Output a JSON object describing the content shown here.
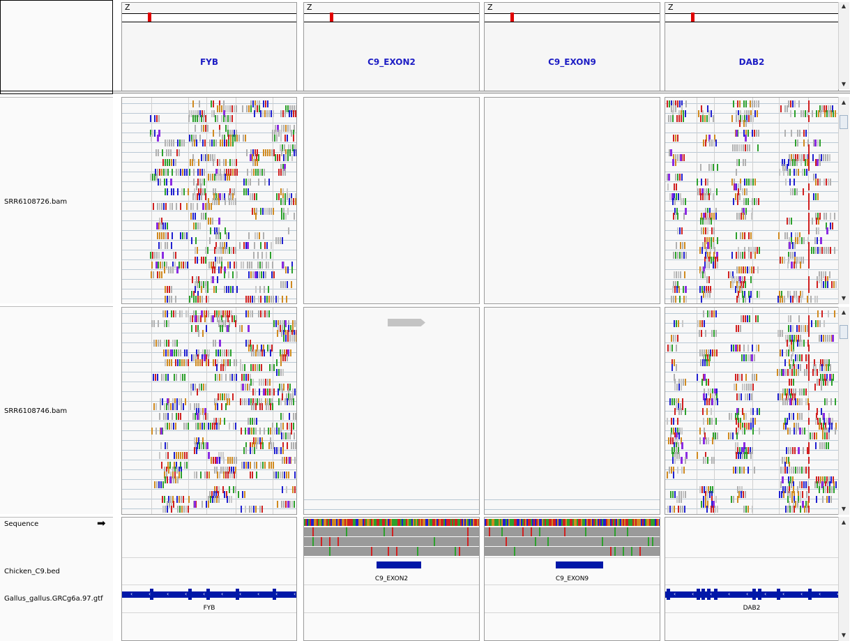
{
  "loci": [
    "FYB",
    "C9_EXON2",
    "C9_EXON9",
    "DAB2"
  ],
  "header": {
    "chrom_prefix": "Z"
  },
  "tracks": {
    "alignment1": "SRR6108726.bam",
    "alignment2": "SRR6108746.bam",
    "sequence": "Sequence",
    "bed": "Chicken_C9.bed",
    "gtf": "Gallus_gallus.GRCg6a.97.gtf"
  },
  "features": {
    "bed": [
      "",
      "C9_EXON2",
      "C9_EXON9",
      ""
    ],
    "gtf": [
      "FYB",
      "",
      "",
      "DAB2"
    ]
  },
  "icons": {
    "sequence_strand": "right-arrow-icon",
    "scroll_up": "up-arrow-icon",
    "scroll_down": "down-arrow-icon"
  },
  "colors": {
    "base_A": "#2ca02c",
    "base_C": "#1f1fd0",
    "base_G": "#d08a20",
    "base_T": "#d02020",
    "insertion": "#8a2be2",
    "locus_label": "#1d1dc4",
    "feature": "#0018a8",
    "ideogram_marker": "#e00000"
  }
}
